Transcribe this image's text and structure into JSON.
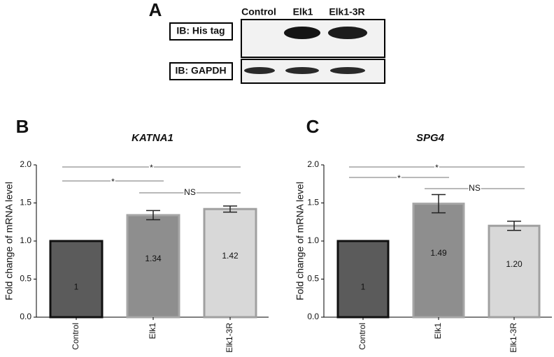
{
  "panel_a": {
    "label": "A",
    "columns": [
      "Control",
      "Elk1",
      "Elk1-3R"
    ],
    "rows": [
      "IB: His tag",
      "IB: GAPDH"
    ]
  },
  "chart_data": [
    {
      "type": "bar",
      "panel": "B",
      "title": "KATNA1",
      "y_label": "Fold change of mRNA level",
      "categories": [
        "Control",
        "Elk1",
        "Elk1-3R"
      ],
      "values": [
        1,
        1.34,
        1.42
      ],
      "value_labels": [
        "1",
        "1.34",
        "1.42"
      ],
      "errors": [
        null,
        0.06,
        0.04
      ],
      "colors": [
        "#5b5b5b",
        "#8e8e8e",
        "#d8d8d8"
      ],
      "edge_colors": [
        "#111111",
        "#a6a6a6",
        "#a0a0a0"
      ],
      "ylim": [
        0,
        2
      ],
      "yticks": [
        {
          "value": 0,
          "label": "0.0"
        },
        {
          "value": 0.5,
          "label": "0.5"
        },
        {
          "value": 1,
          "label": "1.0"
        },
        {
          "value": 1.5,
          "label": "1.5"
        },
        {
          "value": 2,
          "label": "2.0"
        }
      ],
      "brackets": [
        {
          "label": "*",
          "from": "Control",
          "to": "Elk1-3R"
        },
        {
          "label": "*",
          "from": "Control",
          "to": "Elk1"
        },
        {
          "label": "NS",
          "from": "Elk1",
          "to": "Elk1-3R"
        }
      ]
    },
    {
      "type": "bar",
      "panel": "C",
      "title": "SPG4",
      "y_label": "Fold change of mRNA level",
      "categories": [
        "Control",
        "Elk1",
        "Elk1-3R"
      ],
      "values": [
        1,
        1.49,
        1.2
      ],
      "value_labels": [
        "1",
        "1.49",
        "1.20"
      ],
      "errors": [
        null,
        0.12,
        0.06
      ],
      "colors": [
        "#5b5b5b",
        "#8e8e8e",
        "#d8d8d8"
      ],
      "edge_colors": [
        "#111111",
        "#a6a6a6",
        "#a0a0a0"
      ],
      "ylim": [
        0,
        2
      ],
      "yticks": [
        {
          "value": 0,
          "label": "0.0"
        },
        {
          "value": 0.5,
          "label": "0.5"
        },
        {
          "value": 1,
          "label": "1.0"
        },
        {
          "value": 1.5,
          "label": "1.5"
        },
        {
          "value": 2,
          "label": "2.0"
        }
      ],
      "brackets": [
        {
          "label": "*",
          "from": "Control",
          "to": "Elk1-3R"
        },
        {
          "label": "*",
          "from": "Control",
          "to": "Elk1"
        },
        {
          "label": "NS",
          "from": "Elk1",
          "to": "Elk1-3R"
        }
      ]
    }
  ]
}
